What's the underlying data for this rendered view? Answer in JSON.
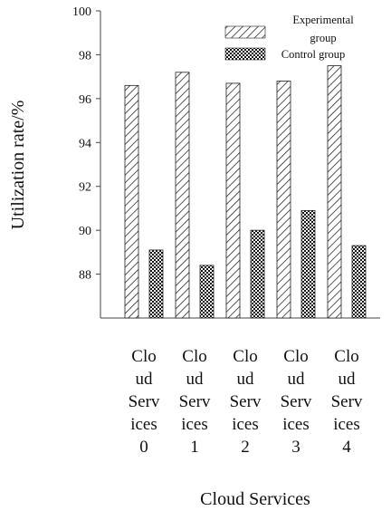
{
  "chart_data": {
    "type": "bar",
    "xlabel": "Cloud Services",
    "ylabel": "Utilization rate/%",
    "ylim": [
      86,
      100
    ],
    "y_ticks": [
      "88",
      "90",
      "92",
      "94",
      "96",
      "98",
      "100"
    ],
    "categories": [
      {
        "lines": [
          "Clo",
          "ud",
          "Serv",
          "ices",
          "0"
        ]
      },
      {
        "lines": [
          "Clo",
          "ud",
          "Serv",
          "ices",
          "1"
        ]
      },
      {
        "lines": [
          "Clo",
          "ud",
          "Serv",
          "ices",
          "2"
        ]
      },
      {
        "lines": [
          "Clo",
          "ud",
          "Serv",
          "ices",
          "3"
        ]
      },
      {
        "lines": [
          "Clo",
          "ud",
          "Serv",
          "ices",
          "4"
        ]
      }
    ],
    "series": [
      {
        "name_lines": [
          "Experimental",
          "group"
        ],
        "pattern": "diagonal-hatch",
        "values": [
          96.6,
          97.2,
          96.7,
          96.8,
          97.5
        ]
      },
      {
        "name_lines": [
          "Control group"
        ],
        "pattern": "crosshatch",
        "values": [
          89.1,
          88.4,
          90.0,
          90.9,
          89.3
        ]
      }
    ],
    "grid": false,
    "legend_position": "top-right"
  }
}
